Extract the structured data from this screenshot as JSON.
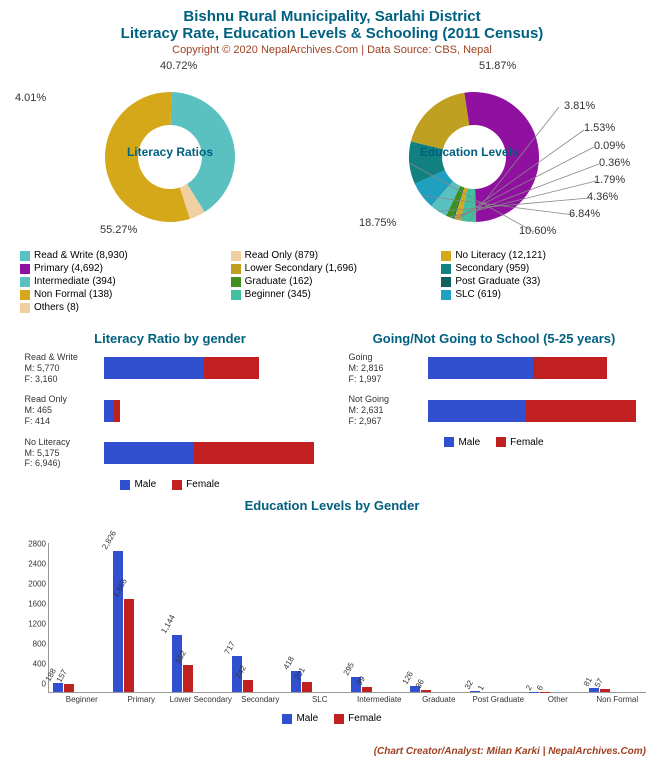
{
  "header": {
    "title": "Bishnu Rural Municipality, Sarlahi District",
    "subtitle": "Literacy Rate, Education Levels & Schooling (2011 Census)",
    "copyright": "Copyright © 2020 NepalArchives.Com | Data Source: CBS, Nepal"
  },
  "colors": {
    "male": "#3050d0",
    "female": "#c02020",
    "teal": "#006080",
    "brown": "#a04020"
  },
  "donut1": {
    "center": "Literacy\nRatios",
    "slices": [
      {
        "label": "Read & Write (8,930)",
        "pct": 40.72,
        "color": "#5bc0c0",
        "slabel": "40.72%"
      },
      {
        "label": "Read Only (879)",
        "pct": 4.01,
        "color": "#f0d0a0",
        "slabel": "4.01%"
      },
      {
        "label": "No Literacy (12,121)",
        "pct": 55.27,
        "color": "#d4a818",
        "slabel": "55.27%"
      }
    ]
  },
  "donut2": {
    "center": "Education\nLevels",
    "slices": [
      {
        "label": "Primary (4,692)",
        "pct": 51.87,
        "color": "#9010a0",
        "slabel": "51.87%"
      },
      {
        "label": "Beginner (345)",
        "pct": 3.81,
        "color": "#40c0a0",
        "slabel": "3.81%"
      },
      {
        "label": "Non Formal (138)",
        "pct": 1.53,
        "color": "#d4a818",
        "slabel": "1.53%"
      },
      {
        "label": "Others (8)",
        "pct": 0.09,
        "color": "#f0d0a0",
        "slabel": "0.09%"
      },
      {
        "label": "Post Graduate (33)",
        "pct": 0.36,
        "color": "#106060",
        "slabel": "0.36%"
      },
      {
        "label": "Graduate (162)",
        "pct": 1.79,
        "color": "#409020",
        "slabel": "1.79%"
      },
      {
        "label": "Intermediate (394)",
        "pct": 4.36,
        "color": "#5bc0c0",
        "slabel": "4.36%"
      },
      {
        "label": "SLC (619)",
        "pct": 6.84,
        "color": "#20a0c0",
        "slabel": "6.84%"
      },
      {
        "label": "Secondary (959)",
        "pct": 10.6,
        "color": "#108080",
        "slabel": "10.60%"
      },
      {
        "label": "Lower Secondary (1,696)",
        "pct": 18.75,
        "color": "#c0a020",
        "slabel": "18.75%"
      }
    ]
  },
  "legend": [
    {
      "label": "Read & Write (8,930)",
      "color": "#5bc0c0"
    },
    {
      "label": "Read Only (879)",
      "color": "#f0d0a0"
    },
    {
      "label": "No Literacy (12,121)",
      "color": "#d4a818"
    },
    {
      "label": "Primary (4,692)",
      "color": "#9010a0"
    },
    {
      "label": "Lower Secondary (1,696)",
      "color": "#c0a020"
    },
    {
      "label": "Secondary (959)",
      "color": "#108080"
    },
    {
      "label": "Intermediate (394)",
      "color": "#5bc0c0"
    },
    {
      "label": "Graduate (162)",
      "color": "#409020"
    },
    {
      "label": "Post Graduate (33)",
      "color": "#106060"
    },
    {
      "label": "Non Formal (138)",
      "color": "#d4a818"
    },
    {
      "label": "Beginner (345)",
      "color": "#40c0a0"
    },
    {
      "label": "SLC (619)",
      "color": "#20a0c0"
    },
    {
      "label": "Others (8)",
      "color": "#f0d0a0"
    }
  ],
  "hbar1": {
    "title": "Literacy Ratio by gender",
    "max": 12200,
    "rows": [
      {
        "name": "Read & Write",
        "m": 5770,
        "f": 3160
      },
      {
        "name": "Read Only",
        "m": 465,
        "f": 414
      },
      {
        "name": "No Literacy",
        "m": 5175,
        "f": 6946
      }
    ]
  },
  "hbar2": {
    "title": "Going/Not Going to School (5-25 years)",
    "max": 5700,
    "rows": [
      {
        "name": "Going",
        "m": 2816,
        "f": 1997
      },
      {
        "name": "Not Going",
        "m": 2631,
        "f": 2967
      }
    ]
  },
  "vbar": {
    "title": "Education Levels by Gender",
    "ymax": 3000,
    "yticks": [
      0,
      400,
      800,
      1200,
      1600,
      2000,
      2400,
      2800
    ],
    "groups": [
      {
        "name": "Beginner",
        "m": 188,
        "f": 157
      },
      {
        "name": "Primary",
        "m": 2826,
        "f": 1866
      },
      {
        "name": "Lower Secondary",
        "m": 1144,
        "f": 552
      },
      {
        "name": "Secondary",
        "m": 717,
        "f": 242
      },
      {
        "name": "SLC",
        "m": 418,
        "f": 201
      },
      {
        "name": "Intermediate",
        "m": 295,
        "f": 99
      },
      {
        "name": "Graduate",
        "m": 126,
        "f": 36
      },
      {
        "name": "Post Graduate",
        "m": 32,
        "f": 1
      },
      {
        "name": "Other",
        "m": 2,
        "f": 6
      },
      {
        "name": "Non Formal",
        "m": 81,
        "f": 57
      }
    ]
  },
  "mini_legend": {
    "male": "Male",
    "female": "Female"
  },
  "credit": "(Chart Creator/Analyst: Milan Karki | NepalArchives.Com)"
}
